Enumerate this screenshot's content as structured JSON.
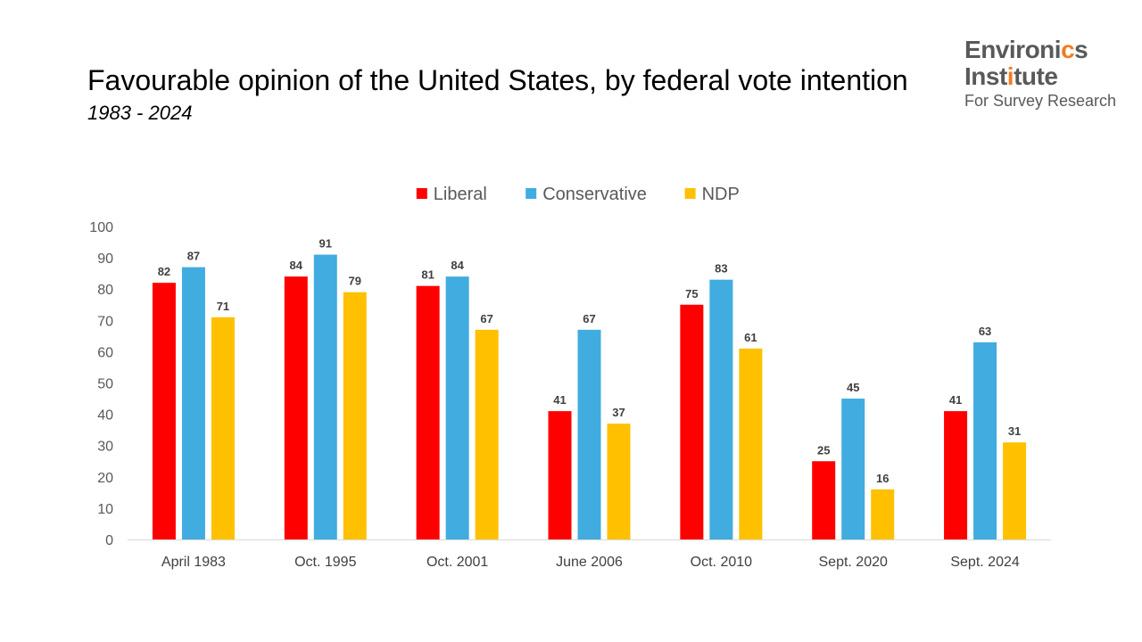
{
  "title": "Favourable opinion of the United States, by federal vote intention",
  "subtitle": "1983 - 2024",
  "logo": {
    "line1": "Environics",
    "line2": "Institute",
    "line3": "For Survey Research"
  },
  "chart_data": {
    "type": "bar",
    "categories": [
      "April 1983",
      "Oct. 1995",
      "Oct. 2001",
      "June 2006",
      "Oct. 2010",
      "Sept. 2020",
      "Sept. 2024"
    ],
    "series": [
      {
        "name": "Liberal",
        "color": "#ff0000",
        "values": [
          82,
          84,
          81,
          41,
          75,
          25,
          41
        ]
      },
      {
        "name": "Conservative",
        "color": "#41acdf",
        "values": [
          87,
          91,
          84,
          67,
          83,
          45,
          63
        ]
      },
      {
        "name": "NDP",
        "color": "#ffc000",
        "values": [
          71,
          79,
          67,
          37,
          61,
          16,
          31
        ]
      }
    ],
    "ylim": [
      0,
      100
    ],
    "yticks": [
      0,
      10,
      20,
      30,
      40,
      50,
      60,
      70,
      80,
      90,
      100
    ],
    "grid": false,
    "legend": "top",
    "data_labels": true
  }
}
